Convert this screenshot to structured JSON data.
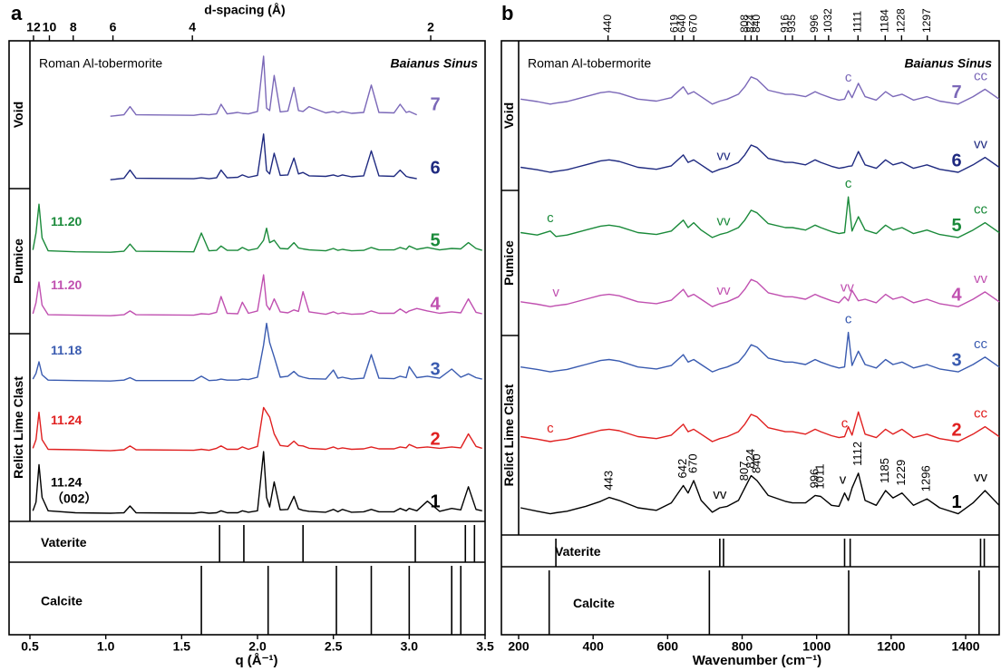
{
  "chart_data": [
    {
      "type": "line",
      "panel": "a",
      "x2label": "d-spacing (Å)",
      "xlabel": "q (Å⁻¹)",
      "annotations": [
        "Roman Al-tobermorite",
        "Baianus Sinus"
      ],
      "groups": [
        "Void",
        "Pumice",
        "Relict Lime Clast"
      ],
      "xlim": [
        0.5,
        3.5
      ],
      "ylim": [
        0,
        100
      ],
      "xticks": [
        0.5,
        {
          "value": 1,
          "label": "1.0"
        },
        1.5,
        {
          "value": 2,
          "label": "2.0"
        },
        2.5,
        {
          "value": 3,
          "label": "3.0"
        },
        3.5
      ],
      "x2ticks": [
        12,
        10,
        8,
        6,
        4,
        2
      ],
      "x": [
        0.52,
        0.54,
        0.56,
        0.58,
        0.62,
        0.8,
        1.03,
        1.12,
        1.16,
        1.2,
        1.58,
        1.63,
        1.68,
        1.73,
        1.76,
        1.8,
        1.87,
        1.9,
        1.94,
        2.0,
        2.04,
        2.06,
        2.08,
        2.11,
        2.15,
        2.2,
        2.24,
        2.27,
        2.3,
        2.34,
        2.45,
        2.5,
        2.53,
        2.56,
        2.62,
        2.7,
        2.75,
        2.8,
        2.9,
        2.94,
        2.98,
        3.0,
        3.05,
        3.12,
        3.2,
        3.28,
        3.34,
        3.39,
        3.44,
        3.48
      ],
      "series": [
        {
          "name": "7",
          "color": "#7b68b8",
          "values": [
            null,
            null,
            null,
            null,
            null,
            null,
            84.3,
            84.6,
            86.3,
            84.6,
            84.5,
            84.7,
            84.6,
            84.8,
            86.8,
            84.8,
            85.1,
            84.9,
            84.8,
            85.3,
            96.8,
            86,
            85.5,
            92.8,
            85.2,
            85.4,
            90.3,
            85.5,
            85.3,
            86.3,
            85,
            85.3,
            85,
            85.3,
            84.9,
            85.1,
            90.8,
            85.1,
            85,
            86.8,
            85.1,
            85.3,
            84.6,
            null,
            null,
            null,
            null,
            null,
            null,
            null
          ]
        },
        {
          "name": "6",
          "color": "#1f2a80",
          "values": [
            null,
            null,
            null,
            null,
            null,
            null,
            71.1,
            71.4,
            73.1,
            71.4,
            71.3,
            71.5,
            71.3,
            71.5,
            73.1,
            71.5,
            71.6,
            72.1,
            71.6,
            72,
            80.6,
            73,
            72.3,
            76.6,
            72,
            72.1,
            75.6,
            72.3,
            72.6,
            71.9,
            71.8,
            72.1,
            71.8,
            72.1,
            71.7,
            71.9,
            77.1,
            71.9,
            71.8,
            73.1,
            71.8,
            71.6,
            71.3,
            null,
            null,
            null,
            null,
            null,
            null,
            null
          ]
        },
        {
          "name": "5",
          "color": "#1a8a3a",
          "peak_labels": [
            "11.20"
          ],
          "values": [
            56.5,
            60,
            66,
            59,
            56.3,
            56.1,
            56,
            56.2,
            57.7,
            56.2,
            56.1,
            60,
            56.3,
            56.4,
            57.3,
            56.4,
            56.4,
            57,
            56.4,
            56.8,
            58.5,
            61,
            58,
            58.5,
            56.8,
            56.7,
            58,
            56.9,
            56.7,
            56.5,
            56.3,
            56.8,
            56.4,
            56.6,
            56.3,
            56.4,
            57,
            56.5,
            56.5,
            57,
            56.6,
            57.3,
            56.6,
            57,
            56.5,
            56.8,
            56.7,
            58,
            56.8,
            56.4
          ]
        },
        {
          "name": "4",
          "color": "#c050b0",
          "peak_labels": [
            "11.20"
          ],
          "values": [
            43.2,
            45.5,
            49.8,
            45,
            43,
            42.9,
            42.8,
            43,
            43.8,
            43,
            42.9,
            43.2,
            43.1,
            43.5,
            46.8,
            43.3,
            43.2,
            45.6,
            43.3,
            43.8,
            51.3,
            45,
            44,
            46.3,
            43.6,
            43.4,
            44,
            43.7,
            47.8,
            43.6,
            43.1,
            43.6,
            43.2,
            43.4,
            43.1,
            43.2,
            43.8,
            43.3,
            43.3,
            44.2,
            43.4,
            43.8,
            44.3,
            43.8,
            43.3,
            43.6,
            43.4,
            46.3,
            43.5,
            43.2
          ]
        },
        {
          "name": "3",
          "color": "#3a5bb0",
          "peak_labels": [
            "11.18"
          ],
          "values": [
            29.6,
            30.8,
            33.2,
            30.5,
            29.4,
            29.3,
            29.2,
            29.4,
            29.9,
            29.3,
            29.3,
            30.2,
            29.3,
            29.4,
            29.6,
            29.4,
            29.4,
            29.6,
            29.5,
            30,
            36.7,
            41.2,
            37.2,
            34.2,
            30,
            30.2,
            31.2,
            30.3,
            30,
            29.7,
            29.6,
            31.5,
            29.8,
            30,
            29.6,
            29.8,
            34.7,
            29.8,
            29.7,
            30.2,
            29.9,
            32.2,
            29.9,
            30.2,
            29.8,
            31.7,
            30,
            30.7,
            29.9,
            29.6
          ]
        },
        {
          "name": "2",
          "color": "#e02020",
          "peak_labels": [
            "11.24"
          ],
          "values": [
            15.2,
            17,
            22.7,
            17,
            15,
            14.9,
            14.7,
            14.9,
            15.7,
            14.9,
            14.8,
            15,
            14.8,
            15.2,
            15.7,
            15,
            15,
            15.5,
            15,
            15.6,
            23.7,
            22.7,
            21.7,
            18.2,
            15.8,
            15.6,
            16.7,
            15.8,
            15.7,
            15.2,
            15,
            15.5,
            15.1,
            15.3,
            15,
            15.1,
            15.5,
            15.1,
            15.1,
            15.5,
            15.3,
            16,
            15.3,
            15.5,
            15.2,
            15.5,
            15.3,
            18.2,
            15.6,
            15.2
          ]
        },
        {
          "name": "1",
          "color": "#000000",
          "peak_labels": [
            "11.24",
            "（002）"
          ],
          "values": [
            2.2,
            4,
            11.8,
            5,
            2.2,
            1.8,
            1.7,
            1.8,
            3.2,
            1.8,
            1.7,
            1.9,
            1.7,
            1.8,
            2.2,
            1.8,
            1.8,
            2.2,
            1.9,
            2.2,
            14.5,
            5,
            3,
            8.2,
            2.4,
            2.5,
            5.2,
            2.6,
            2.3,
            2.1,
            1.9,
            2.5,
            2,
            2.5,
            1.9,
            2,
            2.5,
            2,
            2,
            2.7,
            2.2,
            2.7,
            2.2,
            4.2,
            2.1,
            2.7,
            2.4,
            7.2,
            2.5,
            2.2
          ]
        }
      ],
      "reference": [
        {
          "name": "Vaterite",
          "positions": [
            1.75,
            1.91,
            2.3,
            3.04,
            3.37,
            3.43
          ]
        },
        {
          "name": "Calcite",
          "positions": [
            1.63,
            2.07,
            2.52,
            2.75,
            3.0,
            3.28,
            3.34
          ]
        }
      ]
    },
    {
      "type": "line",
      "panel": "b",
      "xlabel": "Wavenumber (cm⁻¹)",
      "annotations": [
        "Roman Al-tobermorite",
        "Baianus Sinus"
      ],
      "groups": [
        "Void",
        "Pumice",
        "Relict Lime Clast"
      ],
      "xlim": [
        200,
        1490
      ],
      "ylim": [
        0,
        100
      ],
      "xticks": [
        200,
        400,
        600,
        800,
        1000,
        1200,
        1400
      ],
      "x2ticks": [
        440,
        619,
        640,
        670,
        808,
        824,
        840,
        916,
        935,
        996,
        1032,
        1111,
        1184,
        1228,
        1297
      ],
      "x": [
        205,
        250,
        285,
        300,
        330,
        380,
        420,
        443,
        470,
        520,
        570,
        610,
        642,
        655,
        670,
        690,
        720,
        740,
        760,
        790,
        807,
        824,
        840,
        870,
        916,
        935,
        970,
        996,
        1011,
        1040,
        1060,
        1075,
        1085,
        1095,
        1112,
        1130,
        1160,
        1185,
        1205,
        1229,
        1260,
        1296,
        1330,
        1380,
        1420,
        1452,
        1490
      ],
      "series": [
        {
          "name": "7",
          "color": "#7b68b8",
          "markers": [
            {
              "text": "c",
              "x": 1085
            },
            {
              "text": "cc",
              "x": 1440
            }
          ],
          "values": [
            88.2,
            87.7,
            87.2,
            87.4,
            87.7,
            88.7,
            89.5,
            89.7,
            89.4,
            88.2,
            87.8,
            88.5,
            90.7,
            89.2,
            89.7,
            88.7,
            87.2,
            87.8,
            88.2,
            89.2,
            90.7,
            92.7,
            92.2,
            90,
            89.2,
            89.2,
            88.7,
            89.7,
            89.2,
            88.4,
            88,
            88.2,
            89.9,
            88.5,
            91.4,
            88.7,
            88,
            89.7,
            88.7,
            89.2,
            88,
            88.7,
            87.8,
            87.2,
            88.7,
            90.2,
            88.2
          ]
        },
        {
          "name": "6",
          "color": "#1f2a80",
          "markers": [
            {
              "text": "vv",
              "x": 750
            },
            {
              "text": "vv",
              "x": 1440
            }
          ],
          "values": [
            74.4,
            73.9,
            73.4,
            73.6,
            73.9,
            74.9,
            75.7,
            75.9,
            75.6,
            74.4,
            74,
            74.7,
            76.9,
            75.4,
            75.9,
            74.9,
            73.4,
            74,
            74.4,
            75.4,
            76.9,
            78.9,
            78.4,
            76.2,
            75.4,
            75.4,
            74.9,
            75.9,
            75.4,
            74.6,
            74.2,
            74.4,
            74.6,
            74.7,
            77.6,
            74.9,
            74.2,
            75.9,
            74.9,
            75.4,
            74.2,
            74.9,
            74,
            73.4,
            74.9,
            76.4,
            74.4
          ]
        },
        {
          "name": "5",
          "color": "#1a8a3a",
          "markers": [
            {
              "text": "c",
              "x": 285
            },
            {
              "text": "vv",
              "x": 750
            },
            {
              "text": "c",
              "x": 1085
            },
            {
              "text": "cc",
              "x": 1440
            }
          ],
          "values": [
            61.2,
            60.7,
            61.5,
            60.4,
            60.7,
            61.7,
            62.5,
            62.7,
            62.4,
            61.2,
            60.8,
            61.5,
            63.7,
            62.2,
            63.2,
            61.7,
            60.2,
            60.8,
            61.2,
            62.2,
            63.7,
            65.7,
            65.2,
            63,
            62.2,
            62.2,
            61.7,
            62.7,
            62.2,
            61.4,
            61,
            61.2,
            68.4,
            61.5,
            64.4,
            61.7,
            61,
            62.7,
            61.7,
            62.2,
            61,
            61.7,
            60.8,
            60.2,
            61.7,
            63.2,
            61.2
          ]
        },
        {
          "name": "4",
          "color": "#c050b0",
          "markers": [
            {
              "text": "v",
              "x": 300
            },
            {
              "text": "vv",
              "x": 750
            },
            {
              "text": "vv",
              "x": 1082
            },
            {
              "text": "vv",
              "x": 1440
            }
          ],
          "values": [
            47.2,
            46.7,
            46.2,
            46.4,
            46.7,
            47.7,
            48.5,
            48.7,
            48.4,
            47.2,
            46.8,
            47.5,
            49.7,
            48.2,
            48.7,
            47.7,
            46.2,
            46.8,
            47.2,
            48.2,
            49.7,
            51.7,
            51.2,
            49,
            48.2,
            48.2,
            47.7,
            48.7,
            48.2,
            47.4,
            47,
            48.2,
            47.4,
            49.5,
            47.4,
            47.7,
            47,
            48.7,
            47.7,
            48.2,
            47,
            47.7,
            46.8,
            46.2,
            47.7,
            49.2,
            47.2
          ]
        },
        {
          "name": "3",
          "color": "#3a5bb0",
          "markers": [
            {
              "text": "c",
              "x": 1085
            },
            {
              "text": "cc",
              "x": 1440
            }
          ],
          "values": [
            34,
            33.5,
            33,
            33.2,
            33.5,
            34.5,
            35.3,
            35.5,
            35.2,
            34,
            33.6,
            34.3,
            36.5,
            35,
            35.5,
            34.5,
            33,
            33.6,
            34,
            35,
            36.5,
            38.5,
            38,
            35.8,
            35,
            35,
            34.5,
            35.5,
            35,
            34.2,
            33.8,
            34,
            41,
            34.3,
            37.2,
            34.5,
            33.8,
            35.5,
            34.5,
            35,
            33.8,
            34.5,
            33.6,
            33,
            34.5,
            36,
            34
          ]
        },
        {
          "name": "2",
          "color": "#e02020",
          "markers": [
            {
              "text": "c",
              "x": 285
            },
            {
              "text": "c",
              "x": 1075
            },
            {
              "text": "cc",
              "x": 1440
            }
          ],
          "values": [
            19.9,
            19.4,
            18.9,
            19.1,
            19.4,
            20.4,
            21.2,
            21.4,
            21.1,
            19.9,
            19.5,
            20.2,
            22.4,
            20.9,
            21.4,
            20.4,
            18.9,
            19.5,
            19.9,
            20.9,
            22.4,
            24.4,
            23.9,
            21.7,
            20.9,
            20.9,
            20.4,
            21.4,
            20.9,
            20.1,
            19.7,
            19.9,
            21.9,
            20.2,
            24.9,
            20.4,
            19.7,
            21.4,
            20.4,
            21.4,
            19.7,
            20.4,
            19.5,
            18.9,
            20.4,
            21.9,
            19.9
          ]
        },
        {
          "name": "1",
          "color": "#000000",
          "markers": [
            {
              "text": "vv",
              "x": 740
            },
            {
              "text": "v",
              "x": 1070
            },
            {
              "text": "vv",
              "x": 1440
            }
          ],
          "peak_labels": [
            443,
            642,
            670,
            807,
            824,
            840,
            996,
            1011,
            1112,
            1185,
            1229,
            1296
          ],
          "values": [
            5.5,
            4.8,
            4.3,
            4.5,
            4.8,
            5.8,
            6.8,
            7.6,
            7,
            5.5,
            5,
            6.5,
            10,
            8.5,
            11,
            7,
            4.6,
            5.5,
            5.8,
            7,
            9.5,
            12,
            11,
            8,
            6.8,
            6.5,
            6.5,
            8,
            7.8,
            6,
            5.8,
            8.5,
            7,
            9.5,
            12.5,
            7,
            6,
            9,
            7.5,
            8.5,
            6,
            7.3,
            5.5,
            4.3,
            6.5,
            9,
            6
          ]
        }
      ],
      "reference": [
        {
          "name": "Vaterite",
          "positions": [
            300,
            740,
            750,
            1075,
            1090,
            1440,
            1450
          ]
        },
        {
          "name": "Calcite",
          "positions": [
            282,
            712,
            1086,
            1436
          ]
        }
      ]
    }
  ]
}
